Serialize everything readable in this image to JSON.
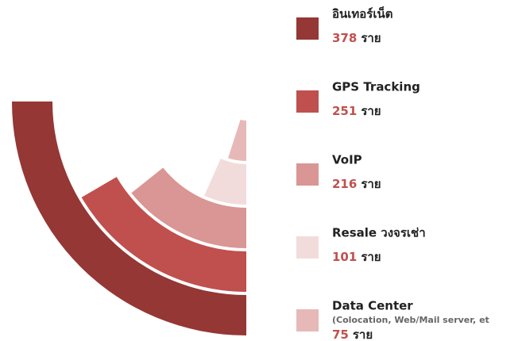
{
  "chart_data": {
    "type": "radial_bar",
    "unit": "ราย",
    "series": [
      {
        "name": "อินเทอร์เน็ต",
        "color": "#953735",
        "values": [
          378
        ]
      },
      {
        "name": "GPS Tracking",
        "color": "#c0504d",
        "values": [
          251
        ]
      },
      {
        "name": "VoIP",
        "color": "#d99694",
        "values": [
          216
        ]
      },
      {
        "name": "Resale วงจรเช่า",
        "color": "#f2dcdb",
        "values": [
          101
        ]
      },
      {
        "name": "Data Center",
        "subtitle": "(Colocation, Web/Mail server, et",
        "color": "#e6b9b8",
        "values": [
          75
        ]
      }
    ]
  }
}
